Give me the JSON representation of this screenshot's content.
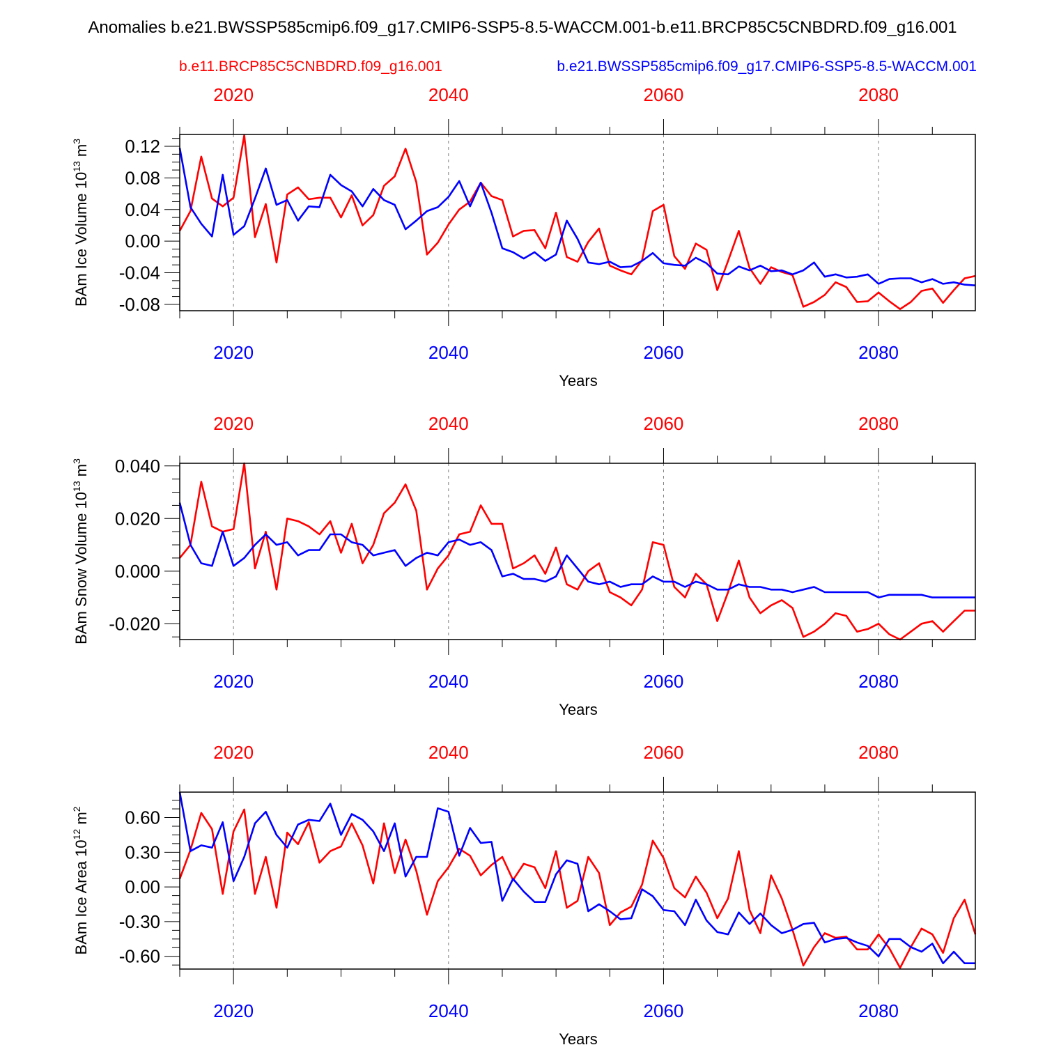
{
  "title": "Anomalies b.e21.BWSSP585cmip6.f09_g17.CMIP6-SSP5-8.5-WACCM.001-b.e11.BRCP85C5CNBDRD.f09_g16.001",
  "legend": {
    "red_case": "b.e11.BRCP85C5CNBDRD.f09_g16.001",
    "blue_case": "b.e21.BWSSP585cmip6.f09_g17.CMIP6-SSP5-8.5-WACCM.001"
  },
  "colors": {
    "red": "#ff0000",
    "blue": "#0000ff",
    "axis": "#000000",
    "grid": "#808080"
  },
  "chart_data": [
    {
      "type": "line",
      "ylabel": "BAm Ice Volume",
      "yunit_html": [
        "10",
        "13",
        " m",
        "3"
      ],
      "xlabel": "Years",
      "xlim": [
        2015,
        2089
      ],
      "ylim": [
        -0.088,
        0.135
      ],
      "yticks": [
        -0.08,
        -0.04,
        0.0,
        0.04,
        0.08,
        0.12
      ],
      "ytick_labels": [
        "-0.08",
        "-0.04",
        "0.00",
        "0.04",
        "0.08",
        "0.12"
      ],
      "xticks": [
        2020,
        2040,
        2060,
        2080
      ],
      "xtick_labels": [
        "2020",
        "2040",
        "2060",
        "2080"
      ],
      "x_start": 2015,
      "series": [
        {
          "name": "b.e11.BRCP85C5CNBDRD.f09_g16.001",
          "color": "red",
          "values": [
            0.013,
            0.038,
            0.107,
            0.054,
            0.044,
            0.055,
            0.134,
            0.005,
            0.047,
            -0.027,
            0.059,
            0.068,
            0.053,
            0.055,
            0.055,
            0.03,
            0.058,
            0.02,
            0.033,
            0.07,
            0.082,
            0.117,
            0.075,
            -0.017,
            -0.002,
            0.021,
            0.04,
            0.05,
            0.074,
            0.057,
            0.052,
            0.006,
            0.013,
            0.014,
            -0.009,
            0.036,
            -0.02,
            -0.026,
            -0.001,
            0.016,
            -0.031,
            -0.037,
            -0.042,
            -0.024,
            0.038,
            0.046,
            -0.019,
            -0.035,
            -0.003,
            -0.011,
            -0.062,
            -0.025,
            0.013,
            -0.034,
            -0.054,
            -0.033,
            -0.039,
            -0.043,
            -0.083,
            -0.077,
            -0.068,
            -0.052,
            -0.058,
            -0.077,
            -0.076,
            -0.065,
            -0.076,
            -0.086,
            -0.077,
            -0.063,
            -0.06,
            -0.078,
            -0.062,
            -0.047,
            -0.044
          ]
        },
        {
          "name": "b.e21.BWSSP585cmip6.f09_g17.CMIP6-SSP5-8.5-WACCM.001",
          "color": "blue",
          "values": [
            0.118,
            0.043,
            0.022,
            0.006,
            0.084,
            0.008,
            0.019,
            0.054,
            0.092,
            0.046,
            0.052,
            0.026,
            0.044,
            0.043,
            0.084,
            0.071,
            0.063,
            0.044,
            0.066,
            0.052,
            0.046,
            0.015,
            0.026,
            0.038,
            0.043,
            0.056,
            0.076,
            0.044,
            0.074,
            0.036,
            -0.009,
            -0.014,
            -0.022,
            -0.014,
            -0.025,
            -0.017,
            0.026,
            0.003,
            -0.027,
            -0.029,
            -0.026,
            -0.033,
            -0.032,
            -0.025,
            -0.015,
            -0.028,
            -0.03,
            -0.031,
            -0.021,
            -0.028,
            -0.041,
            -0.042,
            -0.032,
            -0.037,
            -0.031,
            -0.038,
            -0.037,
            -0.042,
            -0.037,
            -0.027,
            -0.045,
            -0.042,
            -0.046,
            -0.045,
            -0.042,
            -0.054,
            -0.048,
            -0.047,
            -0.047,
            -0.052,
            -0.048,
            -0.054,
            -0.052,
            -0.055,
            -0.056
          ]
        }
      ]
    },
    {
      "type": "line",
      "ylabel": "BAm Snow Volume",
      "yunit_html": [
        "10",
        "13",
        " m",
        "3"
      ],
      "xlabel": "Years",
      "xlim": [
        2015,
        2089
      ],
      "ylim": [
        -0.026,
        0.041
      ],
      "yticks": [
        -0.02,
        0.0,
        0.02,
        0.04
      ],
      "ytick_labels": [
        "-0.020",
        "0.000",
        "0.020",
        "0.040"
      ],
      "xticks": [
        2020,
        2040,
        2060,
        2080
      ],
      "xtick_labels": [
        "2020",
        "2040",
        "2060",
        "2080"
      ],
      "x_start": 2015,
      "series": [
        {
          "name": "b.e11.BRCP85C5CNBDRD.f09_g16.001",
          "color": "red",
          "values": [
            0.005,
            0.01,
            0.034,
            0.017,
            0.015,
            0.016,
            0.041,
            0.001,
            0.015,
            -0.007,
            0.02,
            0.019,
            0.017,
            0.014,
            0.019,
            0.007,
            0.018,
            0.003,
            0.01,
            0.022,
            0.026,
            0.033,
            0.023,
            -0.007,
            0.001,
            0.006,
            0.014,
            0.015,
            0.025,
            0.018,
            0.018,
            0.001,
            0.003,
            0.006,
            -0.001,
            0.009,
            -0.005,
            -0.007,
            0.0,
            0.003,
            -0.008,
            -0.01,
            -0.013,
            -0.007,
            0.011,
            0.01,
            -0.006,
            -0.01,
            -0.001,
            -0.005,
            -0.019,
            -0.008,
            0.004,
            -0.01,
            -0.016,
            -0.013,
            -0.011,
            -0.014,
            -0.025,
            -0.023,
            -0.02,
            -0.016,
            -0.017,
            -0.023,
            -0.022,
            -0.02,
            -0.024,
            -0.026,
            -0.023,
            -0.02,
            -0.019,
            -0.023,
            -0.019,
            -0.015,
            -0.015
          ]
        },
        {
          "name": "b.e21.BWSSP585cmip6.f09_g17.CMIP6-SSP5-8.5-WACCM.001",
          "color": "blue",
          "values": [
            0.026,
            0.01,
            0.003,
            0.002,
            0.015,
            0.002,
            0.005,
            0.01,
            0.014,
            0.01,
            0.011,
            0.006,
            0.008,
            0.008,
            0.014,
            0.014,
            0.011,
            0.01,
            0.006,
            0.007,
            0.008,
            0.002,
            0.005,
            0.007,
            0.006,
            0.011,
            0.012,
            0.01,
            0.011,
            0.008,
            -0.002,
            -0.001,
            -0.003,
            -0.003,
            -0.004,
            -0.002,
            0.006,
            0.001,
            -0.004,
            -0.005,
            -0.004,
            -0.006,
            -0.005,
            -0.005,
            -0.002,
            -0.004,
            -0.004,
            -0.006,
            -0.004,
            -0.005,
            -0.007,
            -0.007,
            -0.005,
            -0.006,
            -0.006,
            -0.007,
            -0.007,
            -0.008,
            -0.007,
            -0.006,
            -0.008,
            -0.008,
            -0.008,
            -0.008,
            -0.008,
            -0.01,
            -0.009,
            -0.009,
            -0.009,
            -0.009,
            -0.01,
            -0.01,
            -0.01,
            -0.01,
            -0.01
          ]
        }
      ]
    },
    {
      "type": "line",
      "ylabel": "BAm Ice Area",
      "yunit_html": [
        "10",
        "12",
        " m",
        "2"
      ],
      "xlabel": "Years",
      "xlim": [
        2015,
        2089
      ],
      "ylim": [
        -0.71,
        0.82
      ],
      "yticks": [
        -0.6,
        -0.3,
        0.0,
        0.3,
        0.6
      ],
      "ytick_labels": [
        "-0.60",
        "-0.30",
        "0.00",
        "0.30",
        "0.60"
      ],
      "xticks": [
        2020,
        2040,
        2060,
        2080
      ],
      "xtick_labels": [
        "2020",
        "2040",
        "2060",
        "2080"
      ],
      "x_start": 2015,
      "series": [
        {
          "name": "b.e11.BRCP85C5CNBDRD.f09_g16.001",
          "color": "red",
          "values": [
            0.07,
            0.32,
            0.64,
            0.5,
            -0.06,
            0.48,
            0.67,
            -0.06,
            0.26,
            -0.18,
            0.47,
            0.37,
            0.56,
            0.21,
            0.31,
            0.35,
            0.55,
            0.36,
            0.03,
            0.55,
            0.12,
            0.41,
            0.14,
            -0.24,
            0.05,
            0.17,
            0.33,
            0.27,
            0.1,
            0.19,
            0.26,
            0.06,
            0.2,
            0.17,
            -0.01,
            0.31,
            -0.18,
            -0.12,
            0.26,
            0.12,
            -0.33,
            -0.22,
            -0.17,
            0.02,
            0.4,
            0.25,
            -0.01,
            -0.09,
            0.09,
            -0.05,
            -0.27,
            -0.1,
            0.31,
            -0.2,
            -0.4,
            0.1,
            -0.1,
            -0.37,
            -0.68,
            -0.52,
            -0.4,
            -0.44,
            -0.43,
            -0.54,
            -0.54,
            -0.41,
            -0.53,
            -0.7,
            -0.52,
            -0.36,
            -0.41,
            -0.57,
            -0.27,
            -0.11,
            -0.41
          ]
        },
        {
          "name": "b.e21.BWSSP585cmip6.f09_g17.CMIP6-SSP5-8.5-WACCM.001",
          "color": "blue",
          "values": [
            0.82,
            0.31,
            0.36,
            0.34,
            0.56,
            0.05,
            0.26,
            0.55,
            0.65,
            0.45,
            0.34,
            0.54,
            0.58,
            0.57,
            0.72,
            0.45,
            0.63,
            0.58,
            0.48,
            0.31,
            0.55,
            0.09,
            0.26,
            0.26,
            0.68,
            0.65,
            0.27,
            0.51,
            0.38,
            0.39,
            -0.12,
            0.07,
            -0.04,
            -0.13,
            -0.13,
            0.11,
            0.23,
            0.2,
            -0.21,
            -0.15,
            -0.21,
            -0.28,
            -0.27,
            -0.02,
            -0.08,
            -0.2,
            -0.21,
            -0.33,
            -0.11,
            -0.29,
            -0.39,
            -0.41,
            -0.22,
            -0.32,
            -0.23,
            -0.33,
            -0.4,
            -0.37,
            -0.32,
            -0.31,
            -0.48,
            -0.45,
            -0.44,
            -0.48,
            -0.51,
            -0.6,
            -0.45,
            -0.45,
            -0.52,
            -0.56,
            -0.49,
            -0.66,
            -0.56,
            -0.66,
            -0.66
          ]
        }
      ]
    }
  ]
}
